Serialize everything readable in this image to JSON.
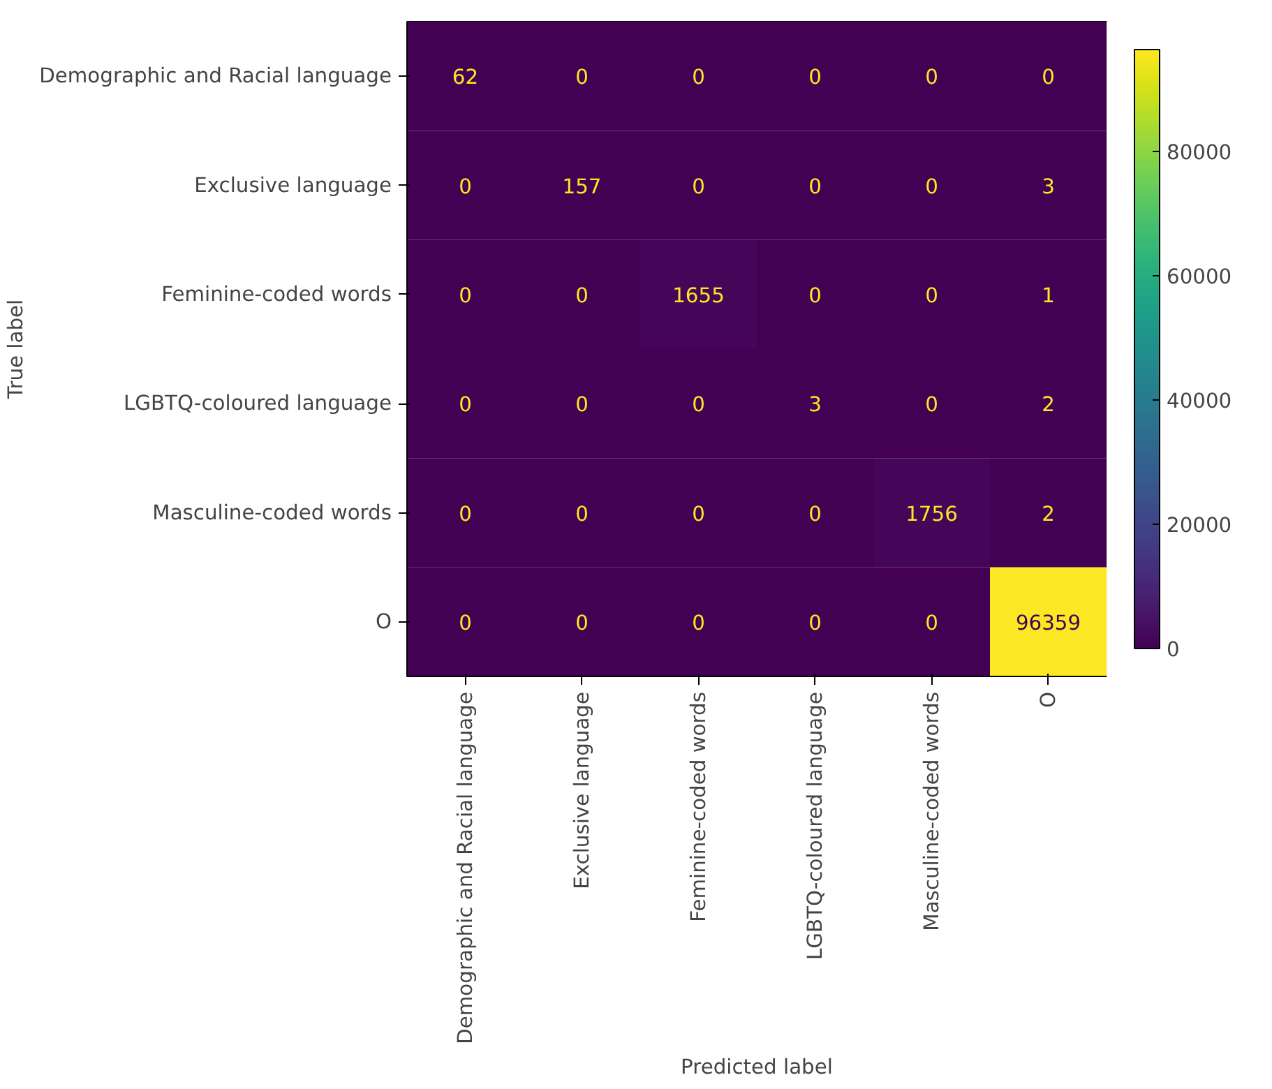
{
  "chart_data": {
    "type": "heatmap",
    "xlabel": "Predicted label",
    "ylabel": "True label",
    "categories": [
      "Demographic and Racial language",
      "Exclusive language",
      "Feminine-coded words",
      "LGBTQ-coloured language",
      "Masculine-coded words",
      "O"
    ],
    "y_categories": [
      "Demographic and Racial language",
      "Exclusive language",
      "Feminine-coded words",
      "LGBTQ-coloured language",
      "Masculine-coded words",
      "O"
    ],
    "cells": [
      [
        62,
        0,
        0,
        0,
        0,
        0
      ],
      [
        0,
        157,
        0,
        0,
        0,
        3
      ],
      [
        0,
        0,
        1655,
        0,
        0,
        1
      ],
      [
        0,
        0,
        0,
        3,
        0,
        2
      ],
      [
        0,
        0,
        0,
        0,
        1756,
        2
      ],
      [
        0,
        0,
        0,
        0,
        0,
        96359
      ]
    ],
    "clim": [
      0,
      96359
    ],
    "cticks": [
      0,
      20000,
      40000,
      60000,
      80000
    ],
    "data_labels": true
  }
}
